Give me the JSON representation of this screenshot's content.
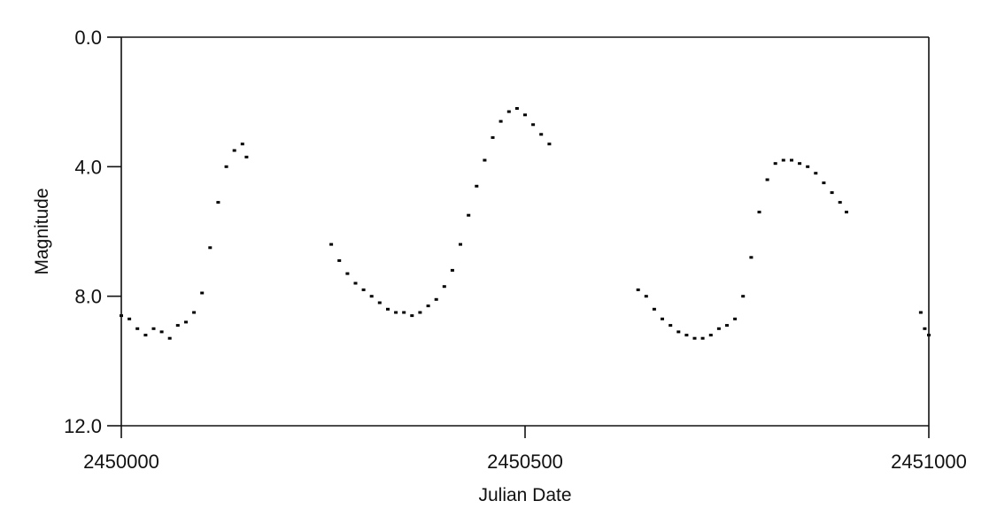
{
  "chart_data": {
    "type": "scatter",
    "title": "",
    "xlabel": "Julian Date",
    "ylabel": "Magnitude",
    "xlim": [
      2450000,
      2451000
    ],
    "ylim": [
      12.0,
      0.0
    ],
    "y_axis_inverted": true,
    "x_ticks": [
      2450000,
      2450500,
      2451000
    ],
    "x_tick_labels": [
      "2450000",
      "2450500",
      "2451000"
    ],
    "y_ticks": [
      0.0,
      4.0,
      8.0,
      12.0
    ],
    "y_tick_labels": [
      "0.0",
      "4.0",
      "8.0",
      "12.0"
    ],
    "grid": false,
    "marker_color": "#000000",
    "series": [
      {
        "points": [
          [
            2450000,
            8.6
          ],
          [
            2450010,
            8.7
          ],
          [
            2450020,
            9.0
          ],
          [
            2450030,
            9.2
          ],
          [
            2450040,
            9.0
          ],
          [
            2450050,
            9.1
          ],
          [
            2450060,
            9.3
          ],
          [
            2450070,
            8.9
          ],
          [
            2450080,
            8.8
          ],
          [
            2450090,
            8.5
          ],
          [
            2450100,
            7.9
          ],
          [
            2450110,
            6.5
          ],
          [
            2450120,
            5.1
          ],
          [
            2450130,
            4.0
          ],
          [
            2450140,
            3.5
          ],
          [
            2450150,
            3.3
          ],
          [
            2450155,
            3.7
          ],
          [
            2450260,
            6.4
          ],
          [
            2450270,
            6.9
          ],
          [
            2450280,
            7.3
          ],
          [
            2450290,
            7.6
          ],
          [
            2450300,
            7.8
          ],
          [
            2450310,
            8.0
          ],
          [
            2450320,
            8.2
          ],
          [
            2450330,
            8.4
          ],
          [
            2450340,
            8.5
          ],
          [
            2450350,
            8.5
          ],
          [
            2450360,
            8.6
          ],
          [
            2450370,
            8.5
          ],
          [
            2450380,
            8.3
          ],
          [
            2450390,
            8.1
          ],
          [
            2450400,
            7.7
          ],
          [
            2450410,
            7.2
          ],
          [
            2450420,
            6.4
          ],
          [
            2450430,
            5.5
          ],
          [
            2450440,
            4.6
          ],
          [
            2450450,
            3.8
          ],
          [
            2450460,
            3.1
          ],
          [
            2450470,
            2.6
          ],
          [
            2450480,
            2.3
          ],
          [
            2450490,
            2.2
          ],
          [
            2450500,
            2.4
          ],
          [
            2450510,
            2.7
          ],
          [
            2450520,
            3.0
          ],
          [
            2450530,
            3.3
          ],
          [
            2450640,
            7.8
          ],
          [
            2450650,
            8.0
          ],
          [
            2450660,
            8.4
          ],
          [
            2450670,
            8.7
          ],
          [
            2450680,
            8.9
          ],
          [
            2450690,
            9.1
          ],
          [
            2450700,
            9.2
          ],
          [
            2450710,
            9.3
          ],
          [
            2450720,
            9.3
          ],
          [
            2450730,
            9.2
          ],
          [
            2450740,
            9.0
          ],
          [
            2450750,
            8.9
          ],
          [
            2450760,
            8.7
          ],
          [
            2450770,
            8.0
          ],
          [
            2450780,
            6.8
          ],
          [
            2450790,
            5.4
          ],
          [
            2450800,
            4.4
          ],
          [
            2450810,
            3.9
          ],
          [
            2450820,
            3.8
          ],
          [
            2450830,
            3.8
          ],
          [
            2450840,
            3.9
          ],
          [
            2450850,
            4.0
          ],
          [
            2450860,
            4.2
          ],
          [
            2450870,
            4.5
          ],
          [
            2450880,
            4.8
          ],
          [
            2450890,
            5.1
          ],
          [
            2450898,
            5.4
          ],
          [
            2450990,
            8.5
          ],
          [
            2450995,
            9.0
          ],
          [
            2451000,
            9.2
          ]
        ]
      }
    ]
  }
}
